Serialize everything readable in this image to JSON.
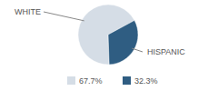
{
  "chart_data": {
    "type": "pie",
    "categories": [
      "WHITE",
      "HISPANIC"
    ],
    "values": [
      67.7,
      32.3
    ],
    "value_labels": [
      "67.7%",
      "32.3%"
    ],
    "colors": [
      "#d5dde6",
      "#2f5d82"
    ],
    "legend": "bottom"
  }
}
